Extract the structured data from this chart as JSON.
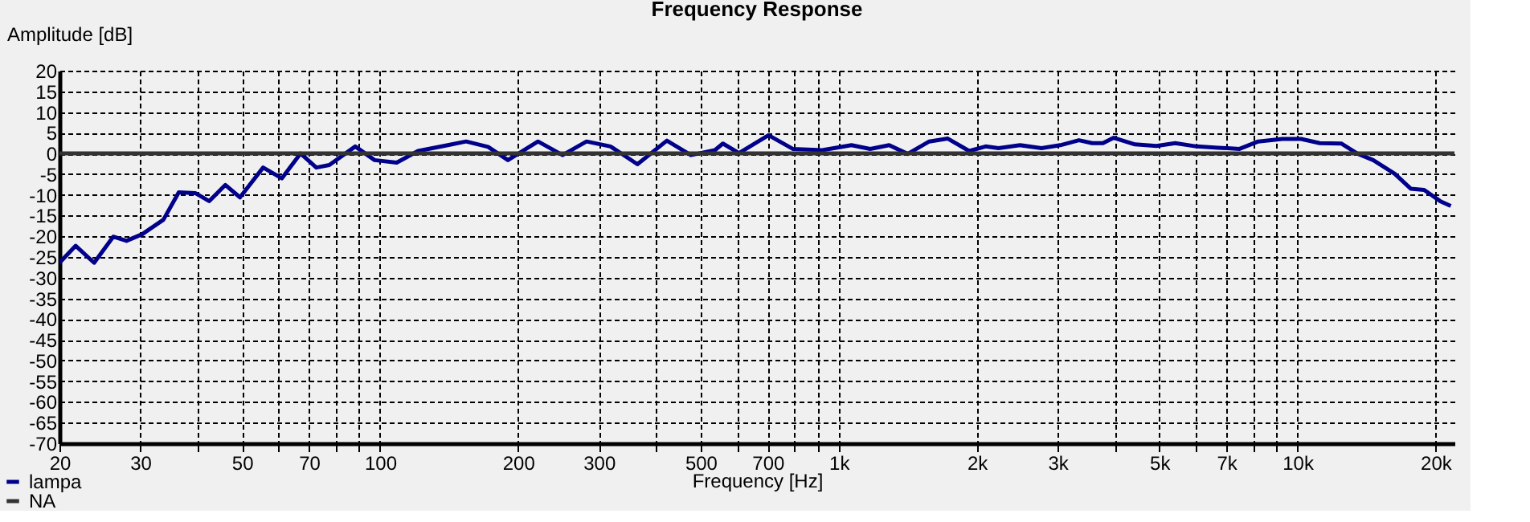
{
  "chart_data": {
    "type": "line",
    "title": "Frequency Response",
    "xlabel": "Frequency [Hz]",
    "ylabel": "Amplitude [dB]",
    "log": "x",
    "xlim": [
      20,
      22000
    ],
    "ylim": [
      -70,
      20
    ],
    "xticks": [
      20,
      30,
      {
        "value": 40,
        "label": null
      },
      50,
      {
        "value": 60,
        "label": null
      },
      70,
      {
        "value": 80,
        "label": null
      },
      {
        "value": 90,
        "label": null
      },
      100,
      200,
      300,
      {
        "value": 400,
        "label": null
      },
      500,
      {
        "value": 600,
        "label": null
      },
      700,
      {
        "value": 800,
        "label": null
      },
      {
        "value": 900,
        "label": null
      },
      {
        "value": 1000,
        "label": "1k"
      },
      {
        "value": 2000,
        "label": "2k"
      },
      {
        "value": 3000,
        "label": "3k"
      },
      {
        "value": 4000,
        "label": null
      },
      {
        "value": 5000,
        "label": "5k"
      },
      {
        "value": 6000,
        "label": null
      },
      {
        "value": 7000,
        "label": "7k"
      },
      {
        "value": 8000,
        "label": null
      },
      {
        "value": 9000,
        "label": null
      },
      {
        "value": 10000,
        "label": "10k"
      },
      {
        "value": 20000,
        "label": "20k"
      }
    ],
    "yticks": [
      -70,
      -65,
      -60,
      -55,
      -50,
      -45,
      -40,
      -35,
      -30,
      -25,
      -20,
      -15,
      -10,
      -5,
      0,
      5,
      10,
      15,
      20
    ],
    "grid": true,
    "legend": "bottom left",
    "marker": "none",
    "line_style": "solid",
    "series": [
      {
        "name": "lampa",
        "color": "#00008b",
        "x": [
          20,
          21.7,
          23.8,
          26.2,
          28,
          30.3,
          33.7,
          36.4,
          39.6,
          42.4,
          46,
          49.5,
          55.6,
          61.1,
          67.1,
          72.6,
          77.5,
          88.3,
          97.3,
          108.7,
          121,
          140.5,
          154,
          172,
          190,
          221,
          250,
          282,
          318,
          364,
          422,
          476,
          537,
          559,
          606,
          703,
          794,
          920,
          1066,
          1171,
          1288,
          1414,
          1575,
          1729,
          1925,
          2090,
          2231,
          2484,
          2767,
          3040,
          3339,
          3570,
          3767,
          3977,
          4426,
          4928,
          5414,
          6030,
          6715,
          7478,
          8216,
          9271,
          10183,
          11189,
          12460,
          13500,
          14630,
          16300,
          17660,
          18890,
          20470,
          21600
        ],
        "values": [
          -26.4,
          -22.3,
          -26.4,
          -20.1,
          -21.1,
          -19.5,
          -16,
          -9.4,
          -9.6,
          -11.5,
          -7.6,
          -10.6,
          -3.4,
          -6,
          0,
          -3.4,
          -2.8,
          1.7,
          -1.6,
          -2.2,
          0.6,
          2,
          2.9,
          1.6,
          -1.6,
          2.9,
          -0.4,
          2.9,
          1.7,
          -2.6,
          3.1,
          -0.4,
          0.8,
          2.4,
          0.1,
          4.4,
          1.1,
          0.8,
          2,
          1.1,
          2,
          -0.1,
          2.9,
          3.6,
          0.6,
          1.7,
          1.3,
          2,
          1.3,
          2,
          3.2,
          2.5,
          2.5,
          3.8,
          2.2,
          1.8,
          2.5,
          1.7,
          1.4,
          1.1,
          2.9,
          3.5,
          3.5,
          2.5,
          2.4,
          0,
          -1.6,
          -4.9,
          -8.5,
          -8.8,
          -11.5,
          -12.7
        ]
      },
      {
        "name": "NA",
        "color": "#333333",
        "x": [
          20,
          22000
        ],
        "values": [
          0,
          0
        ]
      }
    ]
  }
}
